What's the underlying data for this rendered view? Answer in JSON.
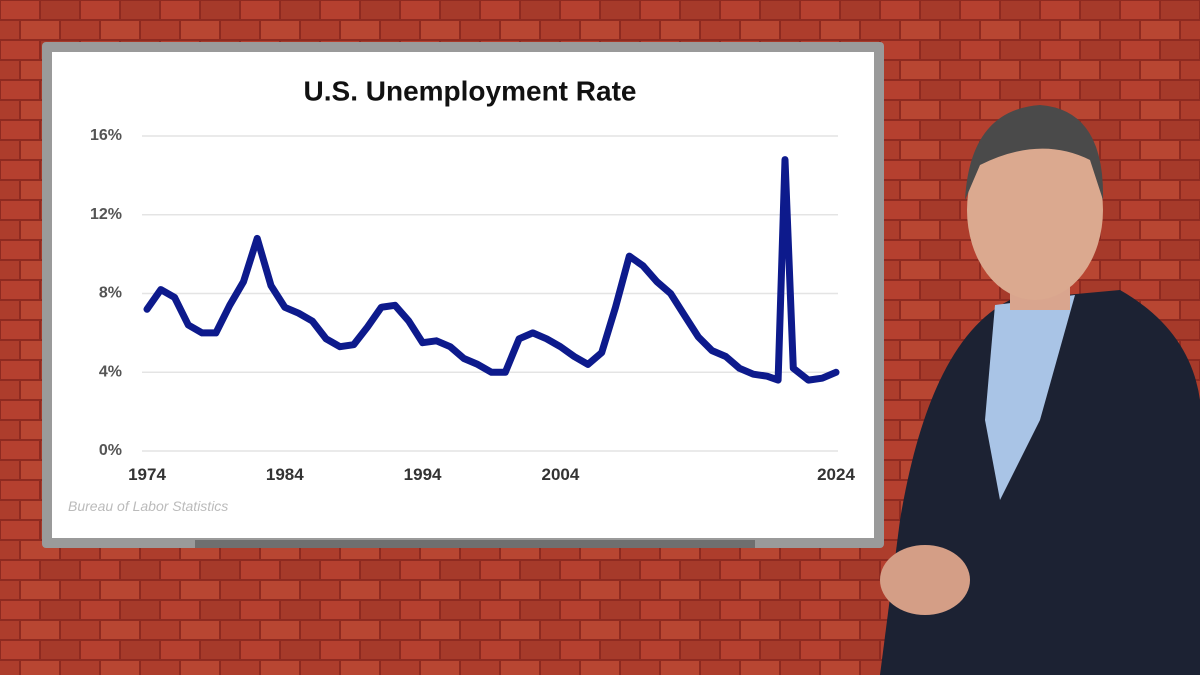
{
  "chart_data": {
    "type": "line",
    "title": "U.S. Unemployment Rate",
    "source": "Bureau of Labor Statistics",
    "x": [
      1974,
      1975,
      1976,
      1977,
      1978,
      1979,
      1980,
      1981,
      1982,
      1983,
      1984,
      1985,
      1986,
      1987,
      1988,
      1989,
      1990,
      1991,
      1992,
      1993,
      1994,
      1995,
      1996,
      1997,
      1998,
      1999,
      2000,
      2001,
      2002,
      2003,
      2004,
      2005,
      2006,
      2007,
      2008,
      2009,
      2010,
      2011,
      2012,
      2013,
      2014,
      2015,
      2016,
      2017,
      2018,
      2019,
      2019.8,
      2020.3,
      2020.9,
      2022,
      2023,
      2024
    ],
    "series": [
      {
        "name": "Unemployment rate",
        "color": "#0d1a8c",
        "values": [
          7.2,
          8.2,
          7.8,
          6.4,
          6.0,
          6.0,
          7.4,
          8.6,
          10.8,
          8.4,
          7.3,
          7.0,
          6.6,
          5.7,
          5.3,
          5.4,
          6.3,
          7.3,
          7.4,
          6.6,
          5.5,
          5.6,
          5.3,
          4.7,
          4.4,
          4.0,
          4.0,
          5.7,
          6.0,
          5.7,
          5.3,
          4.8,
          4.4,
          5.0,
          7.3,
          9.9,
          9.4,
          8.6,
          8.0,
          6.9,
          5.8,
          5.1,
          4.8,
          4.2,
          3.9,
          3.8,
          3.6,
          14.8,
          4.2,
          3.6,
          3.7,
          4.0
        ]
      }
    ],
    "xlim": [
      1974,
      2024
    ],
    "xticks": [
      1974,
      1984,
      1994,
      2004,
      2024
    ],
    "ylim": [
      0,
      16
    ],
    "yticks": [
      {
        "value": 0,
        "label": "0%"
      },
      {
        "value": 4,
        "label": "4%"
      },
      {
        "value": 8,
        "label": "8%"
      },
      {
        "value": 12,
        "label": "12%"
      },
      {
        "value": 16,
        "label": "16%"
      }
    ],
    "grid": true
  }
}
